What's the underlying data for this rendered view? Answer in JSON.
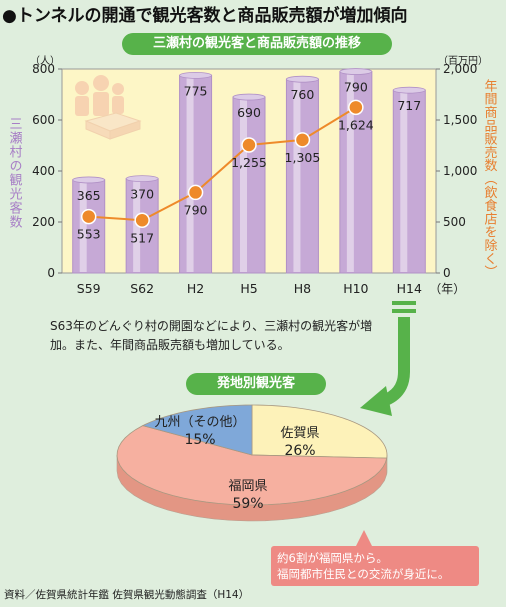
{
  "heading": "●トンネルの開通で観光客数と商品販売額が増加傾向",
  "note_lines": [
    "S63年のどんぐり村の開園などにより、三瀬村の観光客が増",
    "加。また、年間商品販売額も増加している。"
  ],
  "source": "資料／佐賀県統計年鑑 佐賀県観光動態調査（H14）",
  "callout_lines": [
    "約6割が福岡県から。",
    "福岡都市住民との交流が身近に。"
  ],
  "colors": {
    "green": "#57b24a",
    "bar": "#c6a9d6",
    "bar_edge": "#b191c6",
    "plot_bg": "#fdf6c6",
    "line": "#ee8a2a",
    "marker": "#ee8a2a",
    "left_axis": "#a77ec6",
    "right_axis": "#e87f30",
    "pie_blue": "#7fa8d9",
    "pie_yellow": "#fdf2b9",
    "pie_pink": "#f6b0a0",
    "callout": "#ee8a84"
  },
  "chart_data": [
    {
      "type": "bar+line",
      "title": "三瀬村の観光客と商品販売額の推移",
      "categories": [
        "S59",
        "S62",
        "H2",
        "H5",
        "H8",
        "H10",
        "H14"
      ],
      "x_unit": "（年）",
      "left_axis": {
        "label": "三瀬村の観光客数",
        "unit": "（人）",
        "lim": [
          0,
          800
        ],
        "ticks": [
          0,
          200,
          400,
          600,
          800
        ]
      },
      "right_axis": {
        "label": "年間商品販売数（飲食店を除く）",
        "unit": "（百万円）",
        "lim": [
          0,
          2000
        ],
        "ticks": [
          0,
          500,
          1000,
          1500,
          2000
        ],
        "tick_labels": [
          "0",
          "500",
          "1,000",
          "1,500",
          "2,000"
        ]
      },
      "series": [
        {
          "type": "bar",
          "axis": "left",
          "values": [
            365,
            370,
            775,
            690,
            760,
            790,
            717
          ],
          "labels": [
            "365",
            "370",
            "775",
            "690",
            "760",
            "790",
            "717"
          ]
        },
        {
          "type": "line",
          "axis": "right",
          "values": [
            553,
            517,
            790,
            1255,
            1305,
            1624,
            null
          ],
          "labels": [
            "553",
            "517",
            "790",
            "1,255",
            "1,305",
            "1,624",
            ""
          ]
        }
      ],
      "grid": false
    },
    {
      "type": "pie",
      "title": "発地別観光客",
      "categories": [
        "佐賀県",
        "福岡県",
        "九州（その他）"
      ],
      "values": [
        26,
        59,
        15
      ],
      "value_labels": [
        "26%",
        "59%",
        "15%"
      ]
    }
  ]
}
